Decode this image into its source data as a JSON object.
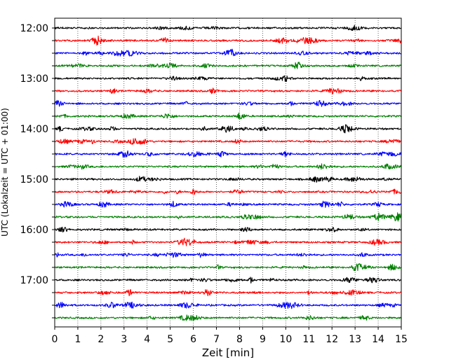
{
  "chart_data": {
    "type": "line",
    "plot_kind": "helicorder",
    "xlabel": "Zeit  [min]",
    "ylabel": "UTC (Lokalzeit = UTC + 01:00)",
    "xlim": [
      0,
      15
    ],
    "x_ticks": [
      0,
      1,
      2,
      3,
      4,
      5,
      6,
      7,
      8,
      9,
      10,
      11,
      12,
      13,
      14,
      15
    ],
    "x_grid": "dotted vertical lines at each minute",
    "trace_start_times": [
      "12:00",
      "12:15",
      "12:30",
      "12:45",
      "13:00",
      "13:15",
      "13:30",
      "13:45",
      "14:00",
      "14:15",
      "14:30",
      "14:45",
      "15:00",
      "15:15",
      "15:30",
      "15:45",
      "16:00",
      "16:15",
      "16:30",
      "16:45",
      "17:00",
      "17:15",
      "17:30",
      "17:45"
    ],
    "y_tick_labels": [
      "12:00",
      "13:00",
      "14:00",
      "15:00",
      "16:00",
      "17:00"
    ],
    "trace_colors": [
      "#000000",
      "#ff0000",
      "#0000ff",
      "#008000"
    ],
    "trace_minutes_each": 15
  }
}
